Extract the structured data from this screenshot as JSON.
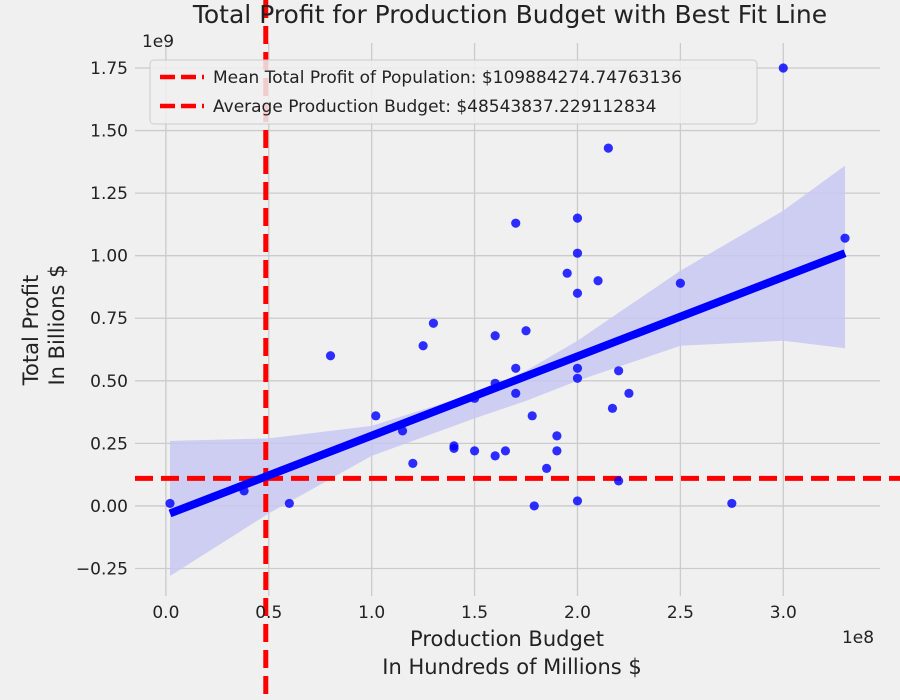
{
  "chart_data": {
    "type": "scatter",
    "title": "Total Profit for Production Budget with Best Fit Line",
    "xlabel_line1": "Production Budget",
    "xlabel_line2": "In Hundreds of Millions $",
    "ylabel_line1": "Total Profit",
    "ylabel_line2": "In Billions $",
    "x_multiplier_label": "1e8",
    "y_multiplier_label": "1e9",
    "x_scale": 100000000,
    "y_scale": 1000000000,
    "xlim": [
      -0.15,
      3.47
    ],
    "ylim": [
      -0.36,
      1.85
    ],
    "xticks": [
      0.0,
      0.5,
      1.0,
      1.5,
      2.0,
      2.5,
      3.0
    ],
    "xtick_labels": [
      "0.0",
      "0.5",
      "1.0",
      "1.5",
      "2.0",
      "2.5",
      "3.0"
    ],
    "yticks": [
      -0.25,
      0.0,
      0.25,
      0.5,
      0.75,
      1.0,
      1.25,
      1.5,
      1.75
    ],
    "ytick_labels": [
      "−0.25",
      "0.00",
      "0.25",
      "0.50",
      "0.75",
      "1.00",
      "1.25",
      "1.50",
      "1.75"
    ],
    "grid": true,
    "legend_position": "top-left",
    "legend": [
      "Mean Total Profit of Population: $109884274.74763136",
      "Average Production Budget: $48543837.229112834"
    ],
    "mean_total_profit": 109884274.74763136,
    "average_production_budget": 48543837.229112834,
    "points": [
      {
        "x": 0.02,
        "y": 0.01
      },
      {
        "x": 0.38,
        "y": 0.06
      },
      {
        "x": 0.6,
        "y": 0.01
      },
      {
        "x": 0.8,
        "y": 0.6
      },
      {
        "x": 1.02,
        "y": 0.36
      },
      {
        "x": 1.15,
        "y": 0.3
      },
      {
        "x": 1.2,
        "y": 0.17
      },
      {
        "x": 1.25,
        "y": 0.64
      },
      {
        "x": 1.3,
        "y": 0.73
      },
      {
        "x": 1.4,
        "y": 0.23
      },
      {
        "x": 1.4,
        "y": 0.24
      },
      {
        "x": 1.5,
        "y": 0.22
      },
      {
        "x": 1.5,
        "y": 0.43
      },
      {
        "x": 1.6,
        "y": 0.2
      },
      {
        "x": 1.6,
        "y": 0.49
      },
      {
        "x": 1.6,
        "y": 0.68
      },
      {
        "x": 1.65,
        "y": 0.22
      },
      {
        "x": 1.7,
        "y": 1.13
      },
      {
        "x": 1.7,
        "y": 0.45
      },
      {
        "x": 1.7,
        "y": 0.55
      },
      {
        "x": 1.75,
        "y": 0.7
      },
      {
        "x": 1.78,
        "y": 0.36
      },
      {
        "x": 1.79,
        "y": 0.0
      },
      {
        "x": 1.85,
        "y": 0.15
      },
      {
        "x": 1.9,
        "y": 0.28
      },
      {
        "x": 1.9,
        "y": 0.22
      },
      {
        "x": 1.95,
        "y": 0.93
      },
      {
        "x": 2.0,
        "y": 1.15
      },
      {
        "x": 2.0,
        "y": 1.01
      },
      {
        "x": 2.0,
        "y": 0.85
      },
      {
        "x": 2.0,
        "y": 0.55
      },
      {
        "x": 2.0,
        "y": 0.51
      },
      {
        "x": 2.0,
        "y": 0.02
      },
      {
        "x": 2.1,
        "y": 0.9
      },
      {
        "x": 2.15,
        "y": 1.43
      },
      {
        "x": 2.17,
        "y": 0.39
      },
      {
        "x": 2.2,
        "y": 0.54
      },
      {
        "x": 2.2,
        "y": 0.1
      },
      {
        "x": 2.25,
        "y": 0.45
      },
      {
        "x": 2.5,
        "y": 0.89
      },
      {
        "x": 2.75,
        "y": 0.01
      },
      {
        "x": 3.0,
        "y": 1.75
      },
      {
        "x": 3.3,
        "y": 1.07
      }
    ],
    "fit_line": [
      {
        "x": 0.02,
        "y": -0.03
      },
      {
        "x": 3.3,
        "y": 1.01
      }
    ],
    "confidence_band": {
      "x": [
        0.02,
        0.5,
        1.0,
        1.5,
        1.75,
        2.0,
        2.5,
        3.0,
        3.3
      ],
      "upper": [
        0.26,
        0.27,
        0.32,
        0.45,
        0.54,
        0.66,
        0.94,
        1.18,
        1.36
      ],
      "lower": [
        -0.28,
        -0.03,
        0.2,
        0.35,
        0.42,
        0.5,
        0.64,
        0.66,
        0.63
      ]
    },
    "colors": {
      "points": "#0000ff",
      "fit_line": "#0000ff",
      "band": "#c8c8f2",
      "reference_lines": "#ff0000",
      "background": "#f0f0f0"
    }
  }
}
